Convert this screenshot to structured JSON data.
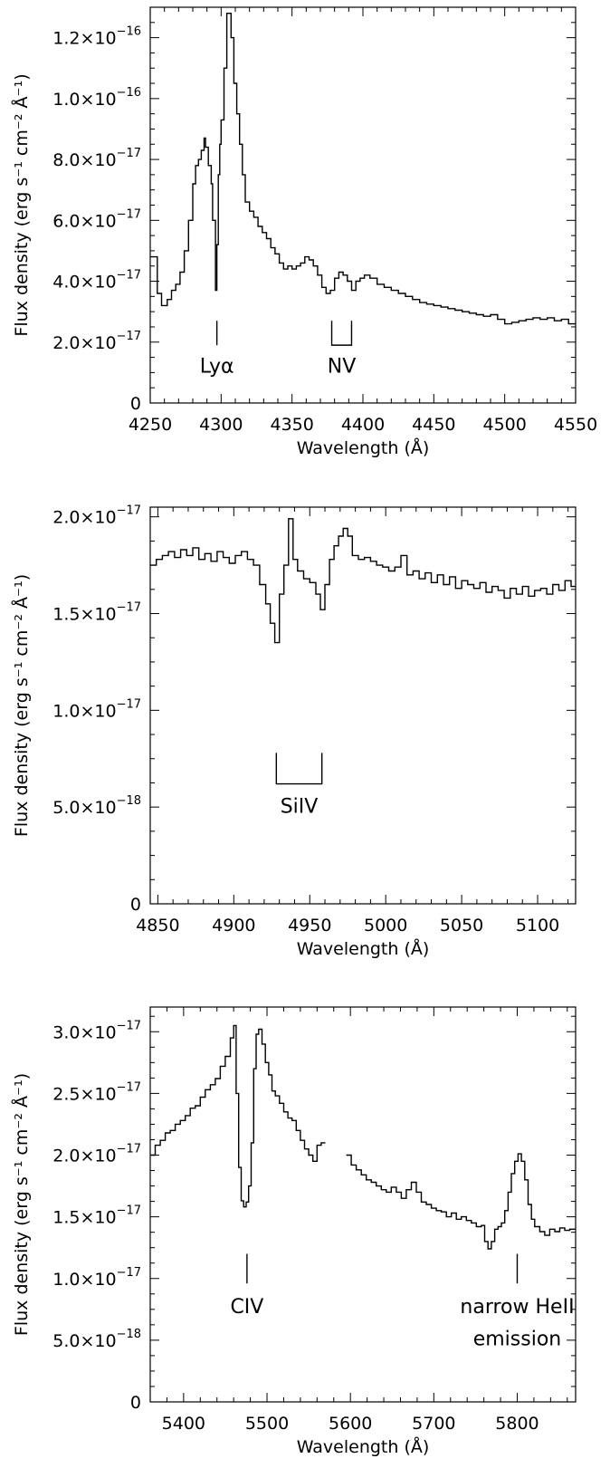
{
  "chart_data": [
    {
      "type": "line",
      "xlabel": "Wavelength (Å)",
      "ylabel": "Flux density (erg s⁻¹ cm⁻² Å⁻¹)",
      "xlim": [
        4250,
        4550
      ],
      "ylim": [
        0,
        1.3e-16
      ],
      "xticks": [
        4250,
        4300,
        4350,
        4400,
        4450,
        4500,
        4550
      ],
      "xtick_labels": [
        "4250",
        "4300",
        "4350",
        "4400",
        "4450",
        "4500",
        "4550"
      ],
      "yticks": [
        0,
        2e-17,
        4e-17,
        6e-17,
        8e-17,
        1e-16,
        1.2e-16
      ],
      "ytick_labels": [
        {
          "mant": "0",
          "exp": ""
        },
        {
          "mant": "2.0×10",
          "exp": "−17"
        },
        {
          "mant": "4.0×10",
          "exp": "−17"
        },
        {
          "mant": "6.0×10",
          "exp": "−17"
        },
        {
          "mant": "8.0×10",
          "exp": "−17"
        },
        {
          "mant": "1.0×10",
          "exp": "−16"
        },
        {
          "mant": "1.2×10",
          "exp": "−16"
        }
      ],
      "series": [
        {
          "style": "step",
          "x": [
            4250,
            4255,
            4258,
            4262,
            4265,
            4268,
            4271,
            4274,
            4277,
            4280,
            4282,
            4284,
            4286,
            4288,
            4289,
            4291,
            4293,
            4294,
            4296,
            4297,
            4298,
            4299,
            4300,
            4302,
            4304,
            4305,
            4307,
            4309,
            4311,
            4313,
            4315,
            4317,
            4320,
            4323,
            4326,
            4329,
            4332,
            4335,
            4338,
            4341,
            4344,
            4347,
            4350,
            4353,
            4356,
            4359,
            4362,
            4365,
            4368,
            4371,
            4374,
            4377,
            4380,
            4383,
            4386,
            4389,
            4392,
            4395,
            4398,
            4401,
            4405,
            4410,
            4415,
            4420,
            4425,
            4430,
            4435,
            4440,
            4445,
            4450,
            4455,
            4460,
            4465,
            4470,
            4475,
            4480,
            4485,
            4490,
            4495,
            4500,
            4505,
            4510,
            4515,
            4520,
            4525,
            4530,
            4535,
            4540,
            4545,
            4550
          ],
          "y": [
            4.8e-17,
            3.6e-17,
            3.2e-17,
            3.4e-17,
            3.7e-17,
            3.9e-17,
            4.3e-17,
            5e-17,
            6e-17,
            7.2e-17,
            7.8e-17,
            8e-17,
            8.3e-17,
            8.7e-17,
            8.4e-17,
            7.8e-17,
            7.2e-17,
            6e-17,
            3.7e-17,
            5.2e-17,
            7.5e-17,
            8.5e-17,
            9.3e-17,
            1.1e-16,
            1.28e-16,
            1.28e-16,
            1.2e-16,
            1.05e-16,
            9.5e-17,
            8.5e-17,
            7.5e-17,
            6.6e-17,
            6.3e-17,
            6.1e-17,
            5.8e-17,
            5.6e-17,
            5.4e-17,
            5.1e-17,
            4.9e-17,
            4.6e-17,
            4.4e-17,
            4.5e-17,
            4.4e-17,
            4.5e-17,
            4.6e-17,
            4.8e-17,
            4.7e-17,
            4.5e-17,
            4.2e-17,
            3.8e-17,
            3.6e-17,
            3.7e-17,
            4.1e-17,
            4.3e-17,
            4.2e-17,
            4e-17,
            3.7e-17,
            4e-17,
            4.1e-17,
            4.2e-17,
            4.1e-17,
            3.9e-17,
            3.8e-17,
            3.7e-17,
            3.6e-17,
            3.5e-17,
            3.4e-17,
            3.3e-17,
            3.25e-17,
            3.2e-17,
            3.15e-17,
            3.1e-17,
            3.05e-17,
            3e-17,
            2.95e-17,
            2.9e-17,
            2.85e-17,
            2.9e-17,
            2.75e-17,
            2.6e-17,
            2.65e-17,
            2.7e-17,
            2.75e-17,
            2.8e-17,
            2.75e-17,
            2.8e-17,
            2.7e-17,
            2.75e-17,
            2.6e-17,
            2.6e-17
          ]
        }
      ],
      "annotations": [
        {
          "text": "Lyα",
          "x": 4297,
          "marker": "tick",
          "y_line": [
            1.9e-17,
            2.7e-17
          ],
          "y_text": 1e-17
        },
        {
          "text": "NV",
          "x": 4385,
          "marker": "bracket",
          "x_range": [
            4378,
            4392
          ],
          "y_line": [
            1.9e-17,
            2.7e-17
          ],
          "y_text": 1e-17
        }
      ]
    },
    {
      "type": "line",
      "xlabel": "Wavelength (Å)",
      "ylabel": "Flux density (erg s⁻¹ cm⁻² Å⁻¹)",
      "xlim": [
        4845,
        5125
      ],
      "ylim": [
        0,
        2.05e-17
      ],
      "xticks": [
        4850,
        4900,
        4950,
        5000,
        5050,
        5100
      ],
      "xtick_labels": [
        "4850",
        "4900",
        "4950",
        "5000",
        "5050",
        "5100"
      ],
      "yticks": [
        0,
        5e-18,
        1e-17,
        1.5e-17,
        2e-17
      ],
      "ytick_labels": [
        {
          "mant": "0",
          "exp": ""
        },
        {
          "mant": "5.0×10",
          "exp": "−18"
        },
        {
          "mant": "1.0×10",
          "exp": "−17"
        },
        {
          "mant": "1.5×10",
          "exp": "−17"
        },
        {
          "mant": "2.0×10",
          "exp": "−17"
        }
      ],
      "series": [
        {
          "style": "step",
          "x": [
            4845,
            4849,
            4853,
            4857,
            4861,
            4865,
            4869,
            4873,
            4877,
            4881,
            4885,
            4889,
            4893,
            4897,
            4901,
            4905,
            4909,
            4913,
            4917,
            4921,
            4924,
            4927,
            4930,
            4933,
            4936,
            4939,
            4942,
            4946,
            4950,
            4954,
            4957,
            4960,
            4963,
            4966,
            4969,
            4972,
            4975,
            4978,
            4982,
            4986,
            4990,
            4994,
            4998,
            5002,
            5006,
            5010,
            5014,
            5018,
            5022,
            5026,
            5030,
            5034,
            5038,
            5042,
            5046,
            5050,
            5054,
            5058,
            5062,
            5066,
            5070,
            5074,
            5078,
            5082,
            5086,
            5090,
            5094,
            5098,
            5102,
            5106,
            5110,
            5114,
            5118,
            5122
          ],
          "y": [
            1.75e-17,
            1.78e-17,
            1.8e-17,
            1.82e-17,
            1.79e-17,
            1.83e-17,
            1.8e-17,
            1.84e-17,
            1.78e-17,
            1.81e-17,
            1.77e-17,
            1.82e-17,
            1.79e-17,
            1.76e-17,
            1.8e-17,
            1.82e-17,
            1.78e-17,
            1.75e-17,
            1.65e-17,
            1.55e-17,
            1.45e-17,
            1.35e-17,
            1.6e-17,
            1.75e-17,
            1.99e-17,
            1.78e-17,
            1.72e-17,
            1.68e-17,
            1.66e-17,
            1.6e-17,
            1.52e-17,
            1.65e-17,
            1.78e-17,
            1.85e-17,
            1.9e-17,
            1.94e-17,
            1.9e-17,
            1.8e-17,
            1.78e-17,
            1.79e-17,
            1.77e-17,
            1.75e-17,
            1.74e-17,
            1.72e-17,
            1.74e-17,
            1.8e-17,
            1.7e-17,
            1.72e-17,
            1.68e-17,
            1.71e-17,
            1.66e-17,
            1.7e-17,
            1.65e-17,
            1.69e-17,
            1.63e-17,
            1.67e-17,
            1.65e-17,
            1.63e-17,
            1.66e-17,
            1.61e-17,
            1.64e-17,
            1.62e-17,
            1.58e-17,
            1.63e-17,
            1.6e-17,
            1.64e-17,
            1.59e-17,
            1.62e-17,
            1.63e-17,
            1.6e-17,
            1.65e-17,
            1.62e-17,
            1.67e-17,
            1.64e-17
          ]
        }
      ],
      "annotations": [
        {
          "text": "SiIV",
          "x": 4943,
          "marker": "bracket",
          "x_range": [
            4928,
            4958
          ],
          "y_line": [
            6.2e-18,
            7.8e-18
          ],
          "y_text": 4.7e-18
        }
      ]
    },
    {
      "type": "line",
      "xlabel": "Wavelength (Å)",
      "ylabel": "Flux density (erg s⁻¹ cm⁻² Å⁻¹)",
      "xlim": [
        5360,
        5870
      ],
      "ylim": [
        0,
        3.2e-17
      ],
      "xticks": [
        5400,
        5500,
        5600,
        5700,
        5800
      ],
      "xtick_labels": [
        "5400",
        "5500",
        "5600",
        "5700",
        "5800"
      ],
      "yticks": [
        0,
        5e-18,
        1e-17,
        1.5e-17,
        2e-17,
        2.5e-17,
        3e-17
      ],
      "ytick_labels": [
        {
          "mant": "0",
          "exp": ""
        },
        {
          "mant": "5.0×10",
          "exp": "−18"
        },
        {
          "mant": "1.0×10",
          "exp": "−17"
        },
        {
          "mant": "1.5×10",
          "exp": "−17"
        },
        {
          "mant": "2.0×10",
          "exp": "−17"
        },
        {
          "mant": "2.5×10",
          "exp": "−17"
        },
        {
          "mant": "3.0×10",
          "exp": "−17"
        }
      ],
      "series": [
        {
          "style": "step",
          "x": [
            5360,
            5366,
            5372,
            5378,
            5384,
            5390,
            5396,
            5402,
            5408,
            5414,
            5420,
            5426,
            5432,
            5438,
            5444,
            5450,
            5456,
            5460,
            5463,
            5466,
            5469,
            5472,
            5475,
            5478,
            5481,
            5484,
            5487,
            5490,
            5494,
            5498,
            5502,
            5506,
            5510,
            5515,
            5520,
            5525,
            5530,
            5535,
            5540,
            5545,
            5550,
            5555,
            5560,
            5565
          ],
          "y": [
            2e-17,
            2.08e-17,
            2.12e-17,
            2.18e-17,
            2.2e-17,
            2.25e-17,
            2.28e-17,
            2.32e-17,
            2.38e-17,
            2.4e-17,
            2.47e-17,
            2.53e-17,
            2.57e-17,
            2.62e-17,
            2.72e-17,
            2.8e-17,
            2.95e-17,
            3.05e-17,
            2.5e-17,
            1.9e-17,
            1.63e-17,
            1.58e-17,
            1.62e-17,
            1.75e-17,
            2.1e-17,
            2.7e-17,
            2.98e-17,
            3.02e-17,
            2.9e-17,
            2.75e-17,
            2.65e-17,
            2.52e-17,
            2.48e-17,
            2.42e-17,
            2.35e-17,
            2.3e-17,
            2.28e-17,
            2.2e-17,
            2.12e-17,
            2.05e-17,
            2e-17,
            1.95e-17,
            2.08e-17,
            2.1e-17
          ]
        },
        {
          "style": "step",
          "x": [
            5595,
            5601,
            5607,
            5613,
            5619,
            5625,
            5631,
            5637,
            5643,
            5649,
            5655,
            5661,
            5667,
            5673,
            5679,
            5685,
            5691,
            5697,
            5703,
            5709,
            5715,
            5721,
            5727,
            5733,
            5739,
            5745,
            5751,
            5757,
            5761,
            5765,
            5769,
            5773,
            5777,
            5781,
            5785,
            5789,
            5793,
            5797,
            5801,
            5805,
            5809,
            5813,
            5817,
            5821,
            5827,
            5833,
            5839,
            5845,
            5851,
            5857,
            5863,
            5869
          ],
          "y": [
            2e-17,
            1.92e-17,
            1.88e-17,
            1.84e-17,
            1.8e-17,
            1.78e-17,
            1.75e-17,
            1.72e-17,
            1.7e-17,
            1.74e-17,
            1.7e-17,
            1.65e-17,
            1.72e-17,
            1.78e-17,
            1.7e-17,
            1.62e-17,
            1.6e-17,
            1.57e-17,
            1.55e-17,
            1.54e-17,
            1.5e-17,
            1.53e-17,
            1.48e-17,
            1.5e-17,
            1.47e-17,
            1.45e-17,
            1.42e-17,
            1.43e-17,
            1.3e-17,
            1.24e-17,
            1.3e-17,
            1.4e-17,
            1.42e-17,
            1.45e-17,
            1.55e-17,
            1.7e-17,
            1.85e-17,
            1.95e-17,
            2.01e-17,
            1.95e-17,
            1.8e-17,
            1.6e-17,
            1.48e-17,
            1.42e-17,
            1.38e-17,
            1.35e-17,
            1.4e-17,
            1.38e-17,
            1.41e-17,
            1.39e-17,
            1.4e-17,
            1.4e-17
          ]
        }
      ],
      "annotations": [
        {
          "text": "CIV",
          "x": 5476,
          "marker": "tick",
          "y_line": [
            9.6e-18,
            1.2e-17
          ],
          "y_text": 7.2e-18
        },
        {
          "text": "narrow HeII",
          "text2": "emission",
          "x": 5800,
          "marker": "tick",
          "y_line": [
            9.6e-18,
            1.2e-17
          ],
          "y_text": 7.2e-18,
          "y_text2": 4.6e-18
        }
      ]
    }
  ]
}
